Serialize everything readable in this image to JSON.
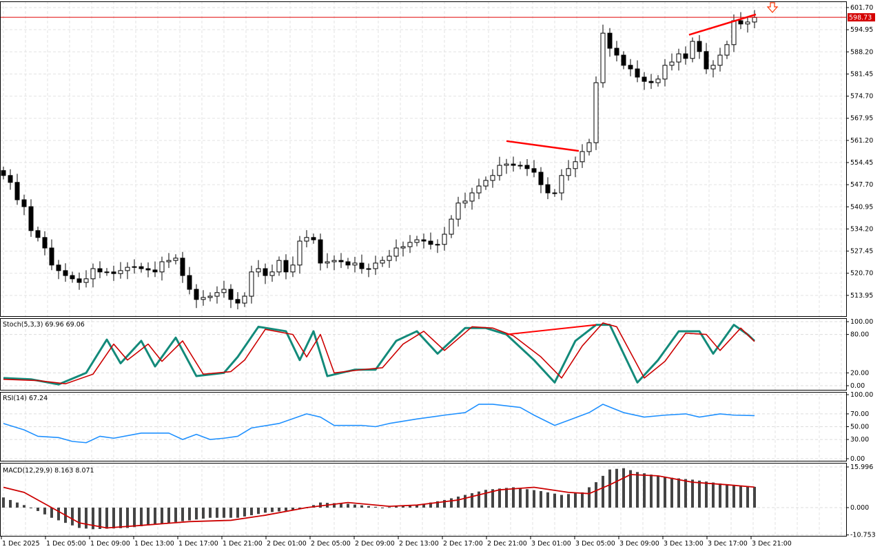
{
  "chart_data": [
    {
      "type": "candlestick",
      "name": "price",
      "timeframe_minutes": 30,
      "current_price": "598.73",
      "y_ticks": [
        "601.70",
        "594.95",
        "588.20",
        "581.45",
        "574.70",
        "567.95",
        "561.20",
        "554.45",
        "547.70",
        "540.95",
        "534.20",
        "527.45",
        "520.70",
        "513.95"
      ],
      "ylim": [
        510.5,
        603.5
      ],
      "x_ticks": [
        "1 Dec 2025",
        "1 Dec 05:00",
        "1 Dec 09:00",
        "1 Dec 13:00",
        "1 Dec 17:00",
        "1 Dec 21:00",
        "2 Dec 01:00",
        "2 Dec 05:00",
        "2 Dec 09:00",
        "2 Dec 13:00",
        "2 Dec 17:00",
        "2 Dec 21:00",
        "3 Dec 01:00",
        "3 Dec 05:00",
        "3 Dec 09:00",
        "3 Dec 13:00",
        "3 Dec 17:00",
        "3 Dec 21:00"
      ],
      "closes": [
        550.5,
        548.4,
        543.1,
        541.0,
        533.7,
        531.6,
        528.4,
        523.2,
        521.5,
        520.0,
        519.0,
        517.9,
        519.0,
        522.1,
        521.1,
        521.1,
        520.6,
        521.5,
        522.5,
        522.7,
        522.1,
        521.7,
        521.1,
        524.2,
        524.6,
        525.3,
        520.0,
        515.8,
        512.7,
        513.3,
        513.7,
        514.8,
        515.8,
        512.7,
        511.6,
        513.7,
        521.1,
        522.1,
        520.0,
        521.1,
        524.6,
        521.1,
        523.2,
        530.5,
        531.6,
        530.9,
        523.8,
        524.2,
        524.6,
        524.2,
        523.2,
        523.8,
        522.1,
        522.1,
        523.8,
        524.6,
        525.9,
        528.4,
        528.8,
        530.1,
        530.9,
        530.5,
        529.5,
        529.5,
        532.6,
        537.2,
        542.1,
        542.7,
        545.2,
        547.3,
        549.0,
        550.5,
        553.6,
        554.0,
        553.6,
        553.6,
        552.6,
        551.5,
        547.7,
        545.2,
        545.2,
        550.5,
        552.6,
        554.7,
        557.8,
        560.5,
        578.8,
        593.9,
        589.3,
        587.2,
        584.1,
        583.0,
        580.5,
        579.2,
        578.8,
        579.9,
        584.1,
        585.1,
        587.6,
        586.2,
        591.4,
        588.3,
        583.0,
        584.1,
        587.2,
        590.4,
        597.7,
        596.7,
        597.3,
        598.7
      ],
      "trendlines": [
        {
          "from": [
            73,
            561.0
          ],
          "to": [
            83.5,
            558.0
          ]
        },
        {
          "from": [
            99.5,
            593.4
          ],
          "to": [
            109.2,
            599.6
          ]
        }
      ],
      "colors": {
        "bull": "#ffffff",
        "bear": "#000000",
        "line": "#ff0000",
        "price_label": "#d40000"
      }
    },
    {
      "type": "line",
      "name": "stochastic",
      "label": "Stoch(5,3,3) 69.96 69.06",
      "y_ticks": [
        "100.00",
        "80.00",
        "20.00",
        "0.00"
      ],
      "ylim": [
        0,
        100
      ],
      "series": [
        {
          "name": "%K",
          "color": "#138a7a",
          "points": [
            [
              0,
              12
            ],
            [
              4,
              10
            ],
            [
              8,
              2
            ],
            [
              12,
              20
            ],
            [
              15,
              72
            ],
            [
              17,
              35
            ],
            [
              20,
              70
            ],
            [
              22,
              30
            ],
            [
              25,
              75
            ],
            [
              28,
              15
            ],
            [
              32,
              20
            ],
            [
              34,
              45
            ],
            [
              37,
              92
            ],
            [
              41,
              85
            ],
            [
              43,
              40
            ],
            [
              45,
              85
            ],
            [
              47,
              15
            ],
            [
              51,
              25
            ],
            [
              54,
              25
            ],
            [
              57,
              70
            ],
            [
              60,
              85
            ],
            [
              63,
              50
            ],
            [
              67,
              90
            ],
            [
              70,
              90
            ],
            [
              73,
              80
            ],
            [
              77,
              40
            ],
            [
              80,
              5
            ],
            [
              83,
              70
            ],
            [
              86,
              95
            ],
            [
              88,
              95
            ],
            [
              92,
              5
            ],
            [
              95,
              40
            ],
            [
              98,
              85
            ],
            [
              101,
              85
            ],
            [
              103,
              50
            ],
            [
              106,
              95
            ],
            [
              108,
              80
            ],
            [
              109,
              69.96
            ]
          ]
        },
        {
          "name": "%D",
          "color": "#cc0000",
          "points": [
            [
              0,
              10
            ],
            [
              5,
              8
            ],
            [
              9,
              3
            ],
            [
              13,
              18
            ],
            [
              16,
              65
            ],
            [
              18,
              40
            ],
            [
              21,
              65
            ],
            [
              23,
              38
            ],
            [
              26,
              70
            ],
            [
              29,
              18
            ],
            [
              33,
              22
            ],
            [
              35,
              40
            ],
            [
              38,
              88
            ],
            [
              42,
              80
            ],
            [
              44,
              45
            ],
            [
              46,
              80
            ],
            [
              48,
              20
            ],
            [
              52,
              25
            ],
            [
              55,
              28
            ],
            [
              58,
              65
            ],
            [
              61,
              85
            ],
            [
              64,
              55
            ],
            [
              68,
              92
            ],
            [
              71,
              90
            ],
            [
              74,
              78
            ],
            [
              78,
              45
            ],
            [
              81,
              12
            ],
            [
              84,
              62
            ],
            [
              87,
              98
            ],
            [
              89,
              92
            ],
            [
              93,
              12
            ],
            [
              96,
              38
            ],
            [
              99,
              82
            ],
            [
              102,
              80
            ],
            [
              104,
              55
            ],
            [
              107,
              90
            ],
            [
              109,
              69.06
            ]
          ]
        }
      ],
      "trendlines": [
        {
          "from": [
            73,
            80
          ],
          "to": [
            86,
            95
          ]
        }
      ]
    },
    {
      "type": "line",
      "name": "rsi",
      "label": "RSI(14) 67.24",
      "y_ticks": [
        "100.00",
        "70.00",
        "50.00",
        "30.00",
        "0.00"
      ],
      "ylim": [
        0,
        100
      ],
      "series": [
        {
          "name": "RSI",
          "color": "#1e90ff",
          "points": [
            [
              0,
              55
            ],
            [
              3,
              45
            ],
            [
              5,
              35
            ],
            [
              8,
              33
            ],
            [
              10,
              27
            ],
            [
              12,
              25
            ],
            [
              14,
              35
            ],
            [
              16,
              32
            ],
            [
              20,
              40
            ],
            [
              24,
              40
            ],
            [
              26,
              30
            ],
            [
              28,
              38
            ],
            [
              30,
              30
            ],
            [
              32,
              32
            ],
            [
              34,
              35
            ],
            [
              36,
              48
            ],
            [
              40,
              55
            ],
            [
              44,
              70
            ],
            [
              46,
              65
            ],
            [
              48,
              52
            ],
            [
              52,
              52
            ],
            [
              54,
              50
            ],
            [
              56,
              55
            ],
            [
              60,
              62
            ],
            [
              64,
              68
            ],
            [
              67,
              72
            ],
            [
              69,
              85
            ],
            [
              71,
              85
            ],
            [
              75,
              80
            ],
            [
              77,
              68
            ],
            [
              80,
              52
            ],
            [
              82,
              60
            ],
            [
              85,
              72
            ],
            [
              87,
              85
            ],
            [
              90,
              72
            ],
            [
              93,
              65
            ],
            [
              96,
              68
            ],
            [
              99,
              70
            ],
            [
              101,
              65
            ],
            [
              104,
              70
            ],
            [
              106,
              68
            ],
            [
              109,
              67.24
            ]
          ]
        }
      ]
    },
    {
      "type": "bar+line",
      "name": "macd",
      "label": "MACD(12,29,9) 8.163 8.071",
      "y_ticks": [
        "15.996",
        "0.000",
        "-10.753"
      ],
      "ylim": [
        -10.753,
        15.996
      ],
      "series": [
        {
          "name": "MACD",
          "color": "#444444",
          "points": [
            [
              0,
              4
            ],
            [
              4,
              0
            ],
            [
              7,
              -4
            ],
            [
              11,
              -8
            ],
            [
              13,
              -8.5
            ],
            [
              18,
              -8
            ],
            [
              24,
              -6
            ],
            [
              30,
              -4
            ],
            [
              34,
              -4
            ],
            [
              38,
              -2
            ],
            [
              42,
              -1
            ],
            [
              44,
              0
            ],
            [
              46,
              2
            ],
            [
              50,
              1.5
            ],
            [
              55,
              0
            ],
            [
              60,
              1
            ],
            [
              64,
              3
            ],
            [
              67,
              5
            ],
            [
              70,
              7
            ],
            [
              74,
              8
            ],
            [
              78,
              6.5
            ],
            [
              81,
              5
            ],
            [
              84,
              6
            ],
            [
              86,
              10
            ],
            [
              88,
              15
            ],
            [
              90,
              15.5
            ],
            [
              92,
              14
            ],
            [
              96,
              12
            ],
            [
              100,
              11
            ],
            [
              104,
              9.5
            ],
            [
              109,
              8.163
            ]
          ]
        },
        {
          "name": "Signal",
          "color": "#cc0000",
          "points": [
            [
              0,
              8
            ],
            [
              3,
              6
            ],
            [
              7,
              0
            ],
            [
              11,
              -6
            ],
            [
              15,
              -8
            ],
            [
              20,
              -7
            ],
            [
              27,
              -5.5
            ],
            [
              33,
              -5
            ],
            [
              38,
              -3
            ],
            [
              44,
              0
            ],
            [
              50,
              2
            ],
            [
              56,
              0.5
            ],
            [
              60,
              1
            ],
            [
              66,
              3
            ],
            [
              72,
              7
            ],
            [
              77,
              8
            ],
            [
              82,
              6
            ],
            [
              85,
              5.5
            ],
            [
              88,
              9
            ],
            [
              91,
              13
            ],
            [
              95,
              12.5
            ],
            [
              100,
              10
            ],
            [
              105,
              9
            ],
            [
              109,
              8.071
            ]
          ]
        }
      ]
    }
  ]
}
